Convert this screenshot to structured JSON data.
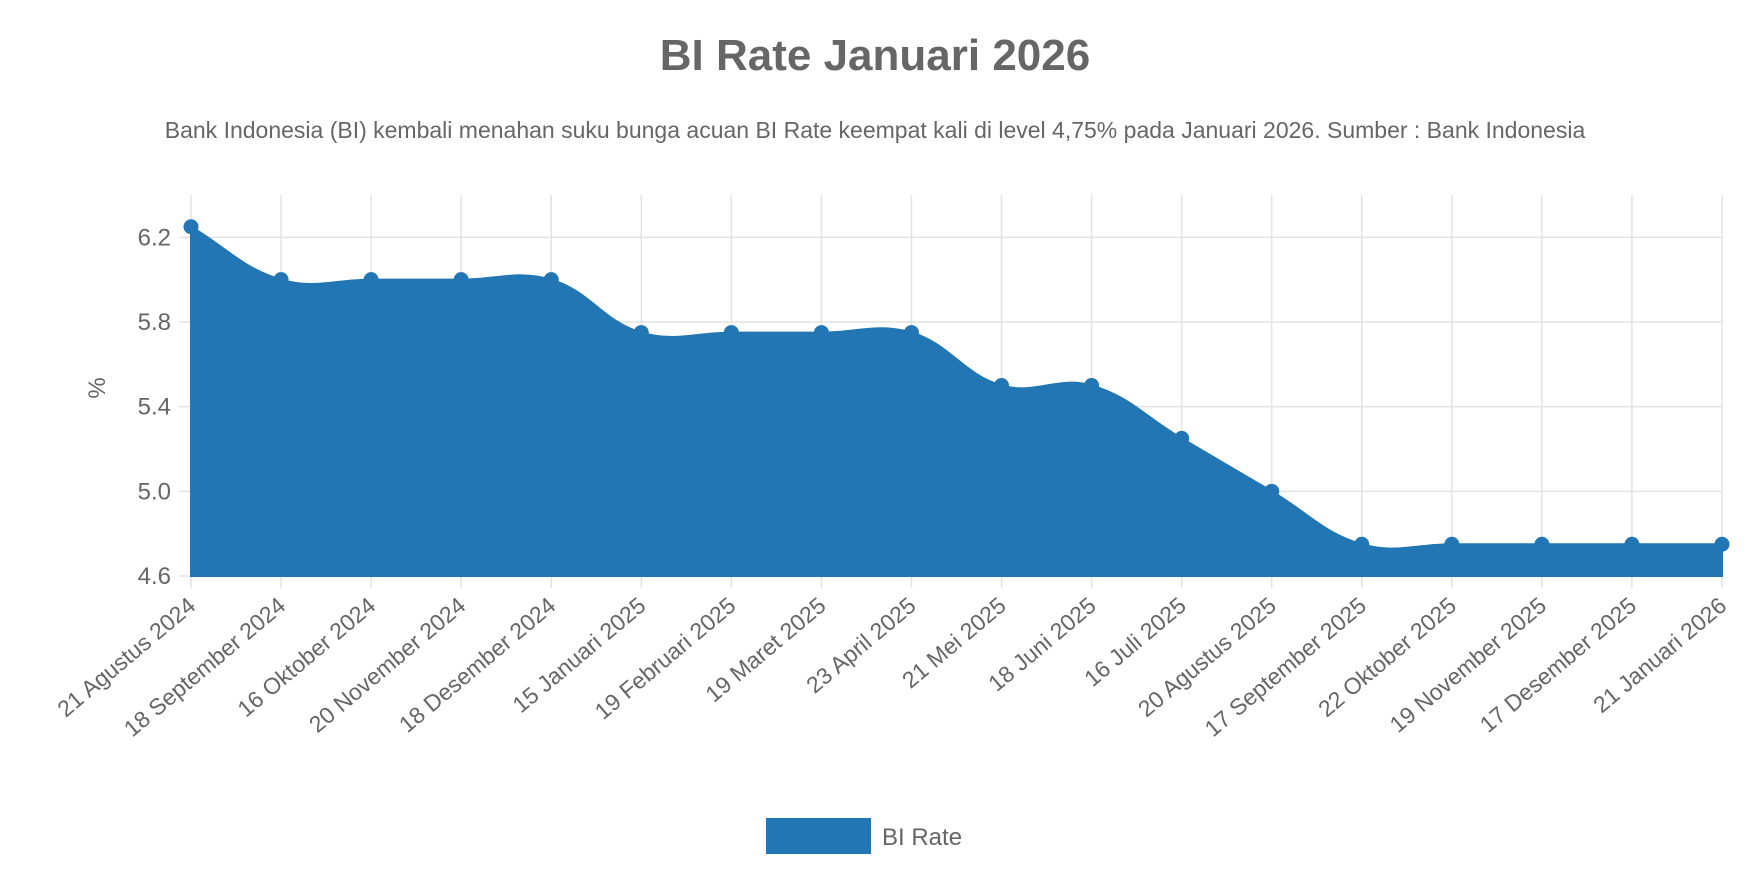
{
  "chart_data": {
    "type": "area",
    "title": "BI Rate Januari 2026",
    "subtitle": "Bank Indonesia (BI) kembali menahan suku bunga acuan BI Rate keempat kali di level 4,75% pada Januari 2026. Sumber : Bank Indonesia",
    "xlabel": "",
    "ylabel": "%",
    "ylim": [
      4.6,
      6.4
    ],
    "yticks": [
      "6.2",
      "5.8",
      "5.4",
      "5.0",
      "4.6"
    ],
    "ytick_values": [
      6.2,
      5.8,
      5.4,
      5.0,
      4.6
    ],
    "grid": true,
    "legend_position": "bottom",
    "categories": [
      "21 Agustus 2024",
      "18 September 2024",
      "16 Oktober 2024",
      "20 November 2024",
      "18 Desember 2024",
      "15 Januari 2025",
      "19 Februari 2025",
      "19 Maret 2025",
      "23 April 2025",
      "21 Mei 2025",
      "18 Juni 2025",
      "16 Juli 2025",
      "20 Agustus 2025",
      "17 September 2025",
      "22 Oktober 2025",
      "19 November 2025",
      "17 Desember 2025",
      "21 Januari 2026"
    ],
    "series": [
      {
        "name": "BI Rate",
        "color": "#2176b3",
        "values": [
          6.25,
          6.0,
          6.0,
          6.0,
          6.0,
          5.75,
          5.75,
          5.75,
          5.75,
          5.5,
          5.5,
          5.25,
          5.0,
          4.75,
          4.75,
          4.75,
          4.75,
          4.75
        ]
      }
    ]
  }
}
